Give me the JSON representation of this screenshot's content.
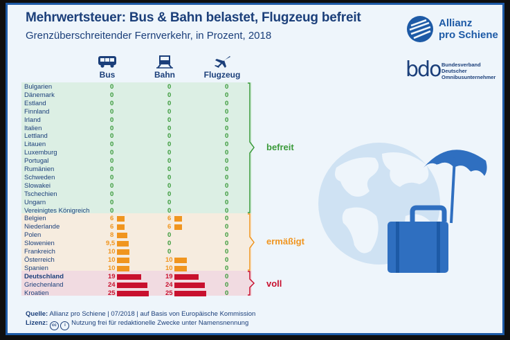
{
  "title": "Mehrwertsteuer: Bus & Bahn belastet, Flugzeug befreit",
  "subtitle": "Grenzüberschreitender Fernverkehr, in Prozent, 2018",
  "logo_allianz": {
    "line1": "Allianz",
    "line2": "pro Schiene"
  },
  "logo_bdo": {
    "word": "bdo",
    "line1": "Bundesverband",
    "line2": "Deutscher",
    "line3": "Omnibusunternehmer"
  },
  "chart_data": {
    "type": "bar",
    "series": [
      {
        "name": "Bus",
        "icon": "bus-icon"
      },
      {
        "name": "Bahn",
        "icon": "train-icon"
      },
      {
        "name": "Flugzeug",
        "icon": "airplane-icon"
      }
    ],
    "categories": [
      "Bulgarien",
      "Dänemark",
      "Estland",
      "Finnland",
      "Irland",
      "Italien",
      "Lettland",
      "Litauen",
      "Luxemburg",
      "Portugal",
      "Rumänien",
      "Schweden",
      "Slowakei",
      "Tschechien",
      "Ungarn",
      "Vereinigtes Königreich",
      "Belgien",
      "Niederlande",
      "Polen",
      "Slowenien",
      "Frankreich",
      "Österreich",
      "Spanien",
      "Deutschland",
      "Griechenland",
      "Kroatien"
    ],
    "rows": [
      {
        "country": "Bulgarien",
        "group": "befreit",
        "labels": [
          "0",
          "0",
          "0"
        ],
        "values": [
          0,
          0,
          0
        ]
      },
      {
        "country": "Dänemark",
        "group": "befreit",
        "labels": [
          "0",
          "0",
          "0"
        ],
        "values": [
          0,
          0,
          0
        ]
      },
      {
        "country": "Estland",
        "group": "befreit",
        "labels": [
          "0",
          "0",
          "0"
        ],
        "values": [
          0,
          0,
          0
        ]
      },
      {
        "country": "Finnland",
        "group": "befreit",
        "labels": [
          "0",
          "0",
          "0"
        ],
        "values": [
          0,
          0,
          0
        ]
      },
      {
        "country": "Irland",
        "group": "befreit",
        "labels": [
          "0",
          "0",
          "0"
        ],
        "values": [
          0,
          0,
          0
        ]
      },
      {
        "country": "Italien",
        "group": "befreit",
        "labels": [
          "0",
          "0",
          "0"
        ],
        "values": [
          0,
          0,
          0
        ]
      },
      {
        "country": "Lettland",
        "group": "befreit",
        "labels": [
          "0",
          "0",
          "0"
        ],
        "values": [
          0,
          0,
          0
        ]
      },
      {
        "country": "Litauen",
        "group": "befreit",
        "labels": [
          "0",
          "0",
          "0"
        ],
        "values": [
          0,
          0,
          0
        ]
      },
      {
        "country": "Luxemburg",
        "group": "befreit",
        "labels": [
          "0",
          "0",
          "0"
        ],
        "values": [
          0,
          0,
          0
        ]
      },
      {
        "country": "Portugal",
        "group": "befreit",
        "labels": [
          "0",
          "0",
          "0"
        ],
        "values": [
          0,
          0,
          0
        ]
      },
      {
        "country": "Rumänien",
        "group": "befreit",
        "labels": [
          "0",
          "0",
          "0"
        ],
        "values": [
          0,
          0,
          0
        ]
      },
      {
        "country": "Schweden",
        "group": "befreit",
        "labels": [
          "0",
          "0",
          "0"
        ],
        "values": [
          0,
          0,
          0
        ]
      },
      {
        "country": "Slowakei",
        "group": "befreit",
        "labels": [
          "0",
          "0",
          "0"
        ],
        "values": [
          0,
          0,
          0
        ]
      },
      {
        "country": "Tschechien",
        "group": "befreit",
        "labels": [
          "0",
          "0",
          "0"
        ],
        "values": [
          0,
          0,
          0
        ]
      },
      {
        "country": "Ungarn",
        "group": "befreit",
        "labels": [
          "0",
          "0",
          "0"
        ],
        "values": [
          0,
          0,
          0
        ]
      },
      {
        "country": "Vereinigtes Königreich",
        "group": "befreit",
        "labels": [
          "0",
          "0",
          "0"
        ],
        "values": [
          0,
          0,
          0
        ]
      },
      {
        "country": "Belgien",
        "group": "ermäßigt",
        "labels": [
          "6",
          "6",
          "0"
        ],
        "values": [
          6,
          6,
          0
        ]
      },
      {
        "country": "Niederlande",
        "group": "ermäßigt",
        "labels": [
          "6",
          "6",
          "0"
        ],
        "values": [
          6,
          6,
          0
        ]
      },
      {
        "country": "Polen",
        "group": "ermäßigt",
        "labels": [
          "8",
          "0",
          "0"
        ],
        "values": [
          8,
          0,
          0
        ]
      },
      {
        "country": "Slowenien",
        "group": "ermäßigt",
        "labels": [
          "9,5",
          "0",
          "0"
        ],
        "values": [
          9.5,
          0,
          0
        ]
      },
      {
        "country": "Frankreich",
        "group": "ermäßigt",
        "labels": [
          "10",
          "0",
          "0"
        ],
        "values": [
          10,
          0,
          0
        ]
      },
      {
        "country": "Österreich",
        "group": "ermäßigt",
        "labels": [
          "10",
          "10",
          "0"
        ],
        "values": [
          10,
          10,
          0
        ]
      },
      {
        "country": "Spanien",
        "group": "ermäßigt",
        "labels": [
          "10",
          "10",
          "0"
        ],
        "values": [
          10,
          10,
          0
        ]
      },
      {
        "country": "Deutschland",
        "group": "voll",
        "bold": true,
        "labels": [
          "19",
          "19",
          "0"
        ],
        "values": [
          19,
          19,
          0
        ]
      },
      {
        "country": "Griechenland",
        "group": "voll",
        "labels": [
          "24",
          "24",
          "0"
        ],
        "values": [
          24,
          24,
          0
        ]
      },
      {
        "country": "Kroatien",
        "group": "voll",
        "labels": [
          "25",
          "25",
          "0"
        ],
        "values": [
          25,
          25,
          0
        ]
      }
    ],
    "groups": [
      {
        "key": "befreit",
        "label": "befreit",
        "color": "#3a9a3a",
        "band": "#dcefe4"
      },
      {
        "key": "ermäßigt",
        "label": "ermäßigt",
        "color": "#f0951f",
        "band": "#f6ecdf"
      },
      {
        "key": "voll",
        "label": "voll",
        "color": "#c8102e",
        "band": "#f1dbe1"
      }
    ],
    "xlim": [
      0,
      25
    ]
  },
  "footer": {
    "source_label": "Quelle:",
    "source_text": " Allianz pro Schiene | 07/2018 | auf Basis von Europäische Kommission",
    "license_label": "Lizenz:",
    "license_text": " Nutzung frei für redaktionelle Zwecke unter Namensnennung",
    "cc_glyph": "cc",
    "by_glyph": "i"
  },
  "colors": {
    "navy": "#1b3f7a",
    "blue": "#1d5aa6",
    "illustration": "#2f6fc0",
    "globe_light": "#cfe2f3"
  }
}
